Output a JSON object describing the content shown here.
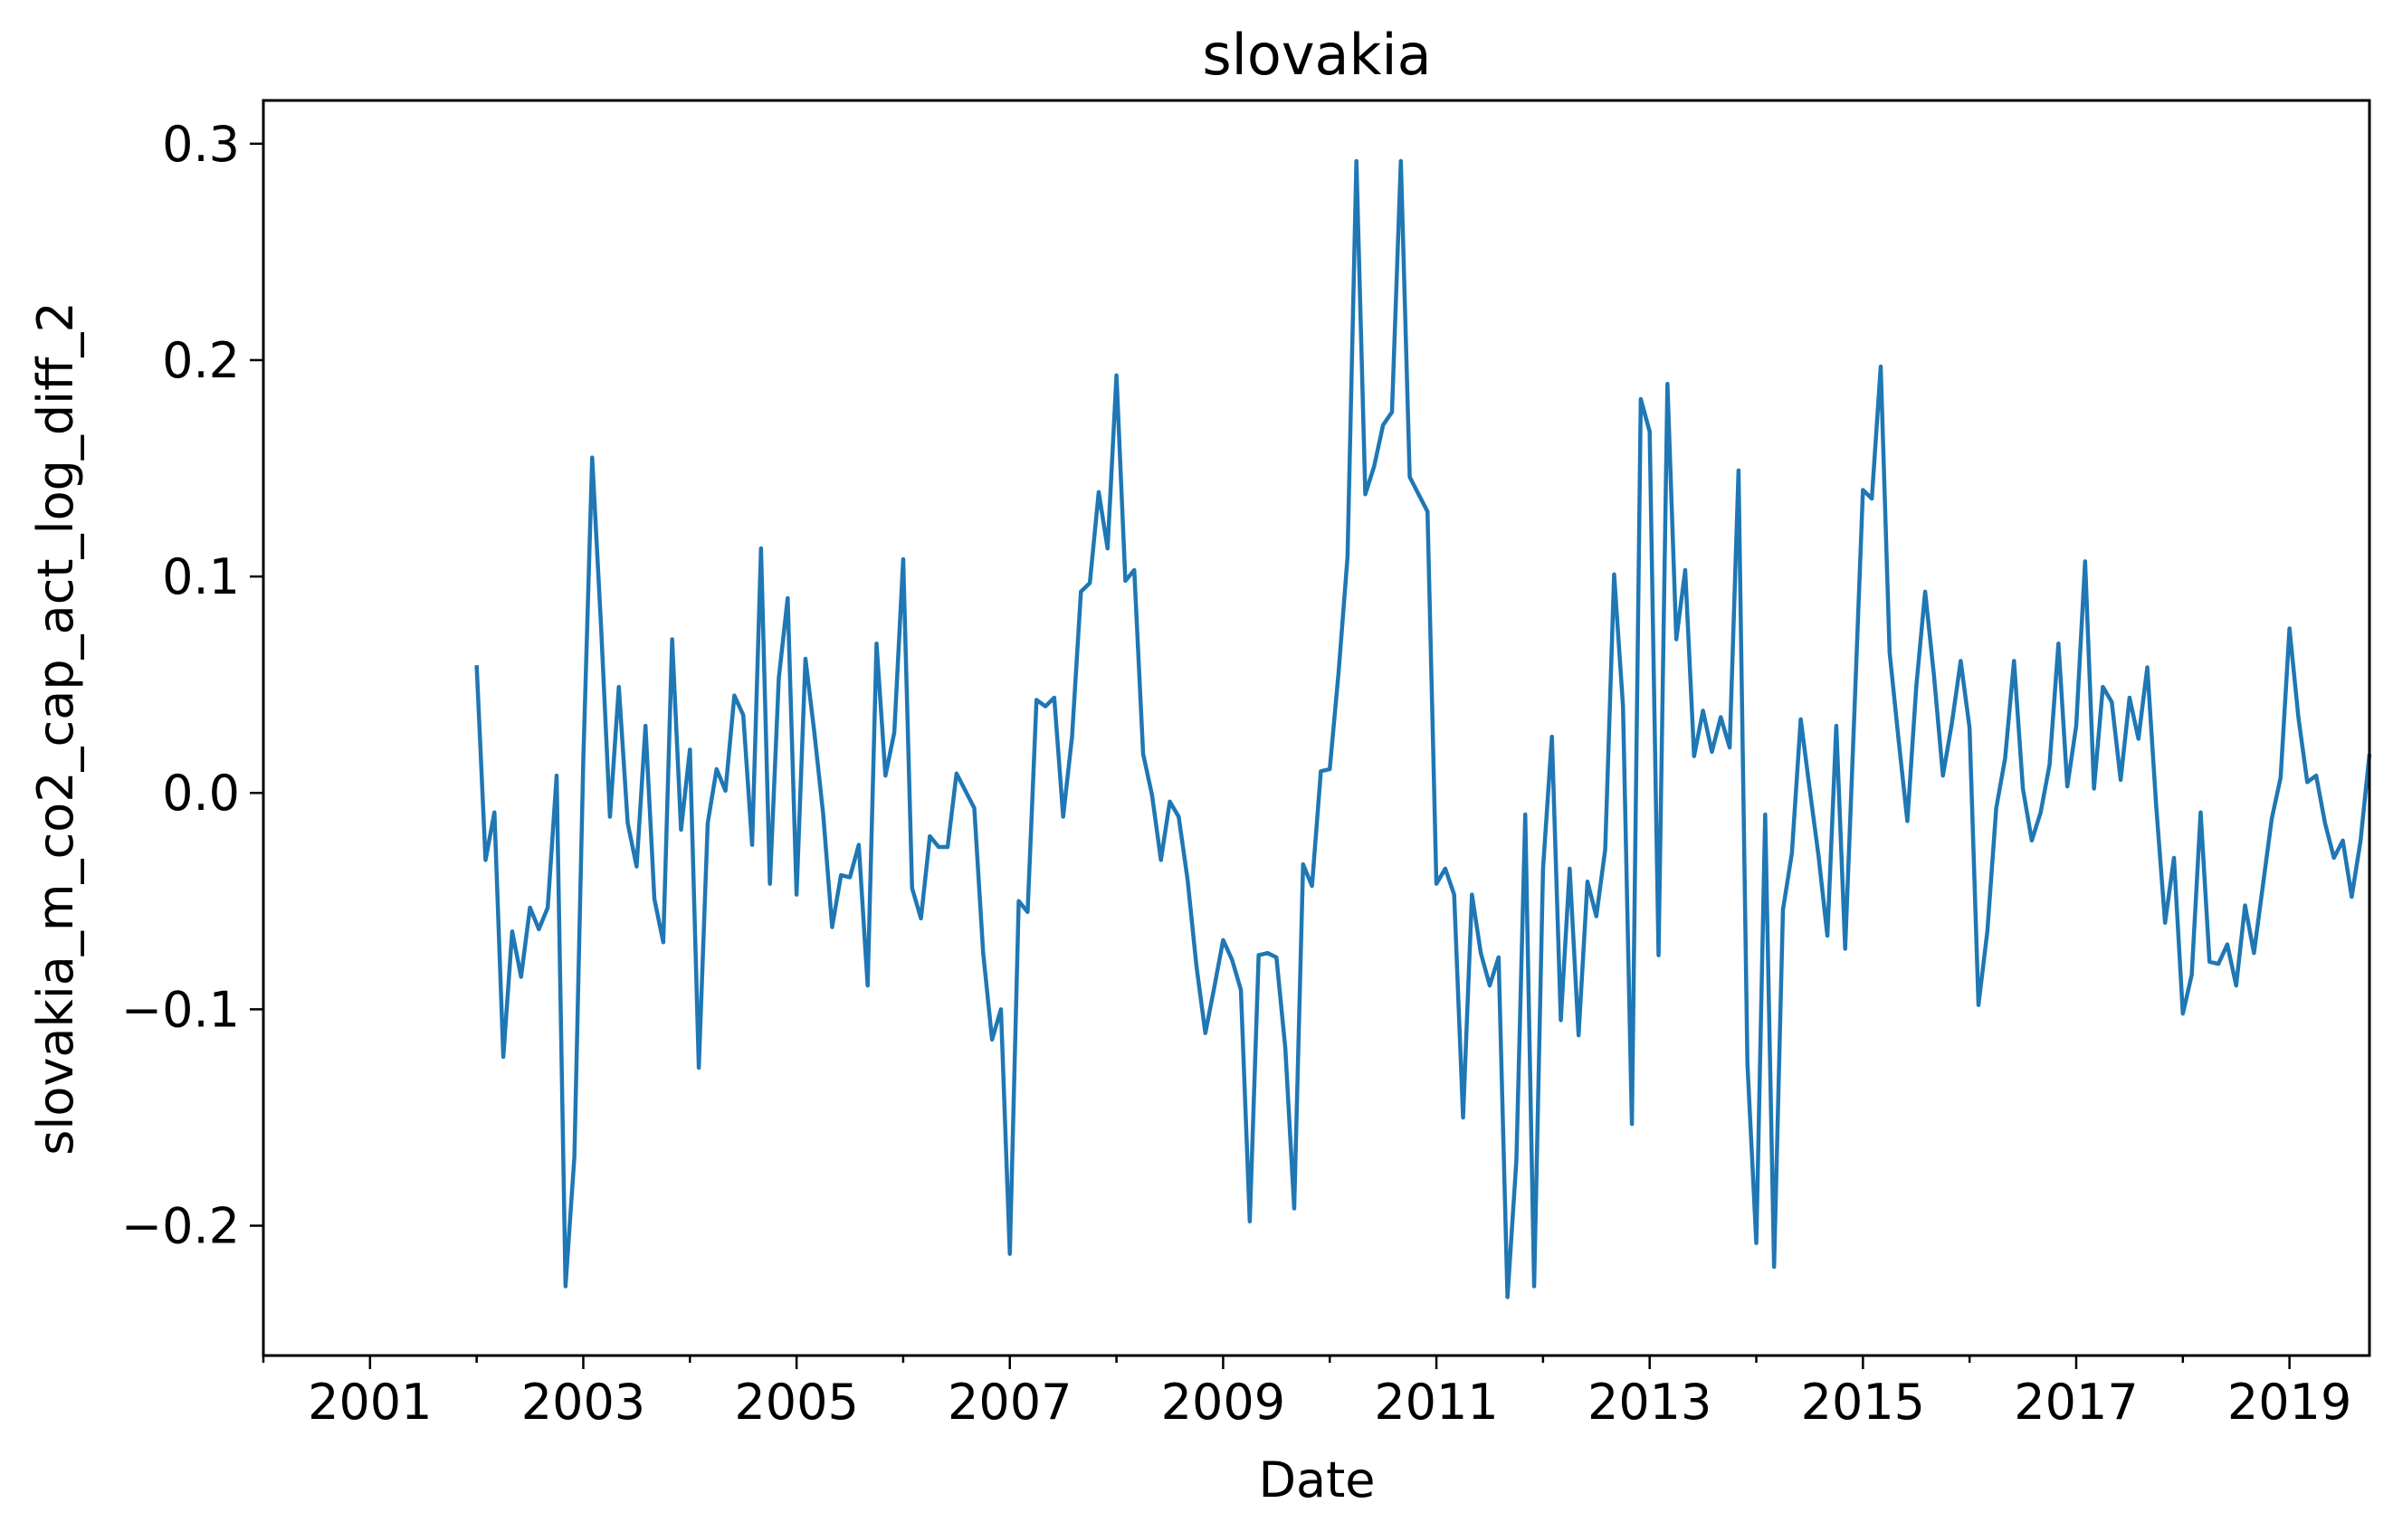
{
  "chart_data": {
    "type": "line",
    "title": "slovakia",
    "xlabel": "Date",
    "ylabel": "slovakia_m_co2_cap_act_log_diff_2",
    "xlim": [
      "2000-01",
      "2019-10"
    ],
    "ylim": [
      -0.26,
      0.32
    ],
    "x_ticks": [
      "2001",
      "2003",
      "2005",
      "2007",
      "2009",
      "2011",
      "2013",
      "2015",
      "2017",
      "2019"
    ],
    "y_ticks": [
      -0.2,
      -0.1,
      0.0,
      0.1,
      0.2,
      0.3
    ],
    "y_tick_labels": [
      "−0.2",
      "−0.1",
      "0.0",
      "0.1",
      "0.2",
      "0.3"
    ],
    "grid": false,
    "series": [
      {
        "color": "#1f77b4",
        "x": [
          "2002-01",
          "2002-02",
          "2002-03",
          "2002-04",
          "2002-05",
          "2002-06",
          "2002-07",
          "2002-08",
          "2002-09",
          "2002-10",
          "2002-11",
          "2002-12",
          "2003-01",
          "2003-02",
          "2003-03",
          "2003-04",
          "2003-05",
          "2003-06",
          "2003-07",
          "2003-08",
          "2003-09",
          "2003-10",
          "2003-11",
          "2003-12",
          "2004-01",
          "2004-02",
          "2004-03",
          "2004-04",
          "2004-05",
          "2004-06",
          "2004-07",
          "2004-08",
          "2004-09",
          "2004-10",
          "2004-11",
          "2004-12",
          "2005-01",
          "2005-02",
          "2005-03",
          "2005-04",
          "2005-05",
          "2005-06",
          "2005-07",
          "2005-08",
          "2005-09",
          "2005-10",
          "2005-11",
          "2005-12",
          "2006-01",
          "2006-02",
          "2006-03",
          "2006-04",
          "2006-05",
          "2006-06",
          "2006-07",
          "2006-08",
          "2006-09",
          "2006-10",
          "2006-11",
          "2006-12",
          "2007-01",
          "2007-02",
          "2007-03",
          "2007-04",
          "2007-05",
          "2007-06",
          "2007-07",
          "2007-08",
          "2007-09",
          "2007-10",
          "2007-11",
          "2007-12",
          "2008-01",
          "2008-02",
          "2008-03",
          "2008-04",
          "2008-05",
          "2008-06",
          "2008-07",
          "2008-08",
          "2008-09",
          "2008-10",
          "2008-11",
          "2008-12",
          "2009-01",
          "2009-02",
          "2009-03",
          "2009-04",
          "2009-05",
          "2009-06",
          "2009-07",
          "2009-08",
          "2009-09",
          "2009-10",
          "2009-11",
          "2009-12",
          "2010-01",
          "2010-02",
          "2010-03",
          "2010-04",
          "2010-05",
          "2010-06",
          "2010-07",
          "2010-08",
          "2010-09",
          "2010-10",
          "2010-11",
          "2010-12",
          "2011-01",
          "2011-02",
          "2011-03",
          "2011-04",
          "2011-05",
          "2011-06",
          "2011-07",
          "2011-08",
          "2011-09",
          "2011-10",
          "2011-11",
          "2011-12",
          "2012-01",
          "2012-02",
          "2012-03",
          "2012-04",
          "2012-05",
          "2012-06",
          "2012-07",
          "2012-08",
          "2012-09",
          "2012-10",
          "2012-11",
          "2012-12",
          "2013-01",
          "2013-02",
          "2013-03",
          "2013-04",
          "2013-05",
          "2013-06",
          "2013-07",
          "2013-08",
          "2013-09",
          "2013-10",
          "2013-11",
          "2013-12",
          "2014-01",
          "2014-02",
          "2014-03",
          "2014-04",
          "2014-05",
          "2014-06",
          "2014-07",
          "2014-08",
          "2014-09",
          "2014-10",
          "2014-11",
          "2014-12",
          "2015-01",
          "2015-02",
          "2015-03",
          "2015-04",
          "2015-05",
          "2015-06",
          "2015-07",
          "2015-08",
          "2015-09",
          "2015-10",
          "2015-11",
          "2015-12",
          "2016-01",
          "2016-02",
          "2016-03",
          "2016-04",
          "2016-05",
          "2016-06",
          "2016-07",
          "2016-08",
          "2016-09",
          "2016-10",
          "2016-11",
          "2016-12",
          "2017-01",
          "2017-02",
          "2017-03",
          "2017-04",
          "2017-05",
          "2017-06",
          "2017-07",
          "2017-08",
          "2017-09",
          "2017-10",
          "2017-11",
          "2017-12",
          "2018-01",
          "2018-02",
          "2018-03",
          "2018-04",
          "2018-05",
          "2018-06",
          "2018-07",
          "2018-08",
          "2018-09",
          "2018-10",
          "2018-11",
          "2018-12",
          "2019-01",
          "2019-02",
          "2019-03",
          "2019-04",
          "2019-05",
          "2019-06",
          "2019-07",
          "2019-08",
          "2019-09",
          "2019-10"
        ],
        "y": [
          0.059,
          -0.031,
          -0.009,
          -0.122,
          -0.064,
          -0.085,
          -0.053,
          -0.063,
          -0.053,
          0.008,
          -0.228,
          -0.168,
          0.015,
          0.155,
          0.077,
          -0.011,
          0.049,
          -0.014,
          -0.034,
          0.031,
          -0.049,
          -0.069,
          0.071,
          -0.017,
          0.02,
          -0.127,
          -0.014,
          0.011,
          0.001,
          0.045,
          0.036,
          -0.024,
          0.113,
          -0.042,
          0.053,
          0.09,
          -0.047,
          0.062,
          0.028,
          -0.01,
          -0.062,
          -0.038,
          -0.039,
          -0.024,
          -0.089,
          0.069,
          0.008,
          0.028,
          0.108,
          -0.044,
          -0.058,
          -0.02,
          -0.025,
          -0.025,
          0.009,
          0.001,
          -0.007,
          -0.074,
          -0.114,
          -0.1,
          -0.213,
          -0.05,
          -0.055,
          0.043,
          0.04,
          0.044,
          -0.011,
          0.026,
          0.093,
          0.097,
          0.139,
          0.113,
          0.193,
          0.098,
          0.103,
          0.018,
          -0.001,
          -0.031,
          -0.004,
          -0.011,
          -0.04,
          -0.08,
          -0.111,
          -0.09,
          -0.068,
          -0.077,
          -0.091,
          -0.198,
          -0.075,
          -0.074,
          -0.076,
          -0.118,
          -0.192,
          -0.033,
          -0.043,
          0.01,
          0.011,
          0.056,
          0.109,
          0.292,
          0.138,
          0.151,
          0.17,
          0.176,
          0.292,
          0.146,
          0.138,
          0.13,
          -0.042,
          -0.035,
          -0.047,
          -0.15,
          -0.047,
          -0.074,
          -0.089,
          -0.076,
          -0.233,
          -0.17,
          -0.01,
          -0.228,
          -0.035,
          0.026,
          -0.105,
          -0.035,
          -0.112,
          -0.041,
          -0.057,
          -0.026,
          0.101,
          0.04,
          -0.153,
          0.182,
          0.167,
          -0.075,
          0.189,
          0.071,
          0.103,
          0.017,
          0.038,
          0.019,
          0.035,
          0.021,
          0.149,
          -0.125,
          -0.208,
          -0.01,
          -0.219,
          -0.054,
          -0.028,
          0.034,
          0.002,
          -0.029,
          -0.066,
          0.031,
          -0.072,
          0.033,
          0.14,
          0.136,
          0.197,
          0.065,
          0.025,
          -0.013,
          0.049,
          0.093,
          0.054,
          0.008,
          0.032,
          0.061,
          0.03,
          -0.098,
          -0.064,
          -0.007,
          0.016,
          0.061,
          0.002,
          -0.022,
          -0.009,
          0.013,
          0.069,
          0.003,
          0.031,
          0.107,
          0.002,
          0.049,
          0.042,
          0.006,
          0.044,
          0.025,
          0.058,
          -0.006,
          -0.06,
          -0.03,
          -0.102,
          -0.084,
          -0.009,
          -0.078,
          -0.079,
          -0.07,
          -0.089,
          -0.052,
          -0.074,
          -0.043,
          -0.012,
          0.007,
          0.076,
          0.035,
          0.005,
          0.008,
          -0.014,
          -0.03,
          -0.022,
          -0.048,
          -0.022,
          0.018
        ]
      }
    ]
  }
}
